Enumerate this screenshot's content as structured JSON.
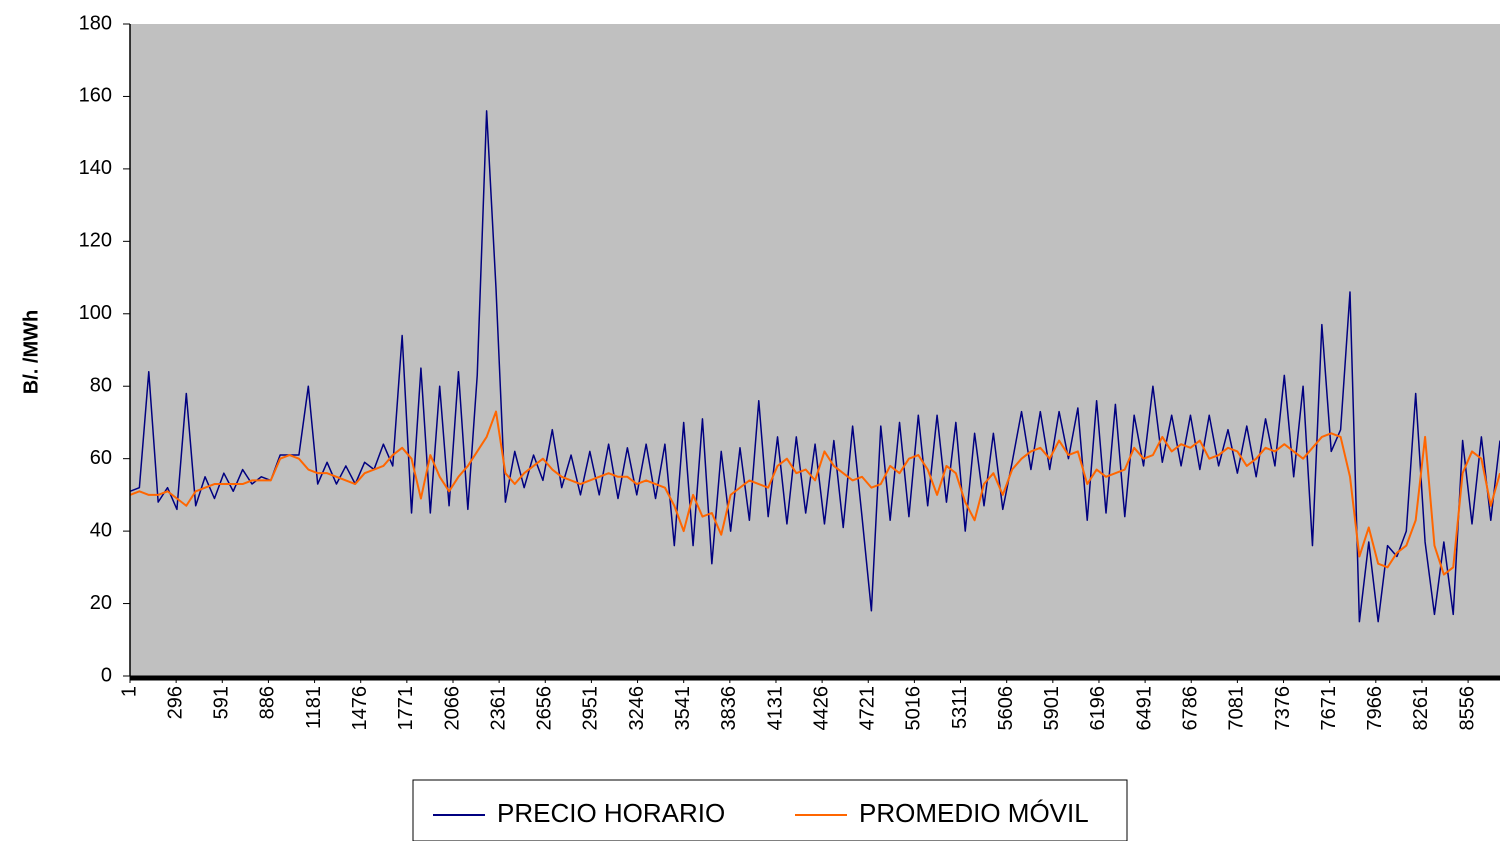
{
  "chart_data": {
    "type": "line",
    "y_label": "B/.  /MWh",
    "x": [
      1,
      61,
      121,
      181,
      241,
      301,
      361,
      421,
      481,
      541,
      601,
      661,
      721,
      781,
      841,
      901,
      961,
      1021,
      1081,
      1141,
      1201,
      1261,
      1321,
      1381,
      1441,
      1501,
      1561,
      1621,
      1681,
      1741,
      1801,
      1861,
      1921,
      1981,
      2041,
      2101,
      2161,
      2221,
      2281,
      2341,
      2401,
      2461,
      2521,
      2581,
      2641,
      2701,
      2761,
      2821,
      2881,
      2941,
      3001,
      3061,
      3121,
      3181,
      3241,
      3301,
      3361,
      3421,
      3481,
      3541,
      3601,
      3661,
      3721,
      3781,
      3841,
      3901,
      3961,
      4021,
      4081,
      4141,
      4201,
      4261,
      4321,
      4381,
      4441,
      4501,
      4561,
      4621,
      4681,
      4741,
      4801,
      4861,
      4921,
      4981,
      5041,
      5101,
      5161,
      5221,
      5281,
      5341,
      5401,
      5461,
      5521,
      5581,
      5641,
      5701,
      5761,
      5821,
      5881,
      5941,
      6001,
      6061,
      6121,
      6181,
      6241,
      6301,
      6361,
      6421,
      6481,
      6541,
      6601,
      6661,
      6721,
      6781,
      6841,
      6901,
      6961,
      7021,
      7081,
      7141,
      7201,
      7261,
      7321,
      7381,
      7441,
      7501,
      7561,
      7621,
      7681,
      7741,
      7801,
      7861,
      7921,
      7981,
      8041,
      8101,
      8161,
      8221,
      8281,
      8341,
      8401,
      8461,
      8521,
      8581,
      8641,
      8701,
      8760
    ],
    "series": [
      {
        "name": "PRECIO HORARIO",
        "color": "#000080",
        "values": [
          51,
          52,
          84,
          48,
          52,
          46,
          78,
          47,
          55,
          49,
          56,
          51,
          57,
          53,
          55,
          54,
          61,
          61,
          61,
          80,
          53,
          59,
          53,
          58,
          53,
          59,
          57,
          64,
          58,
          94,
          45,
          85,
          45,
          80,
          47,
          84,
          46,
          83,
          156,
          107,
          48,
          62,
          52,
          61,
          54,
          68,
          52,
          61,
          50,
          62,
          50,
          64,
          49,
          63,
          50,
          64,
          49,
          64,
          36,
          70,
          36,
          71,
          31,
          62,
          40,
          63,
          43,
          76,
          44,
          66,
          42,
          66,
          45,
          64,
          42,
          65,
          41,
          69,
          44,
          18,
          69,
          43,
          70,
          44,
          72,
          47,
          72,
          48,
          70,
          40,
          67,
          47,
          67,
          46,
          59,
          73,
          57,
          73,
          57,
          73,
          60,
          74,
          43,
          76,
          45,
          75,
          44,
          72,
          58,
          80,
          59,
          72,
          58,
          72,
          57,
          72,
          58,
          68,
          56,
          69,
          55,
          71,
          58,
          83,
          55,
          80,
          36,
          97,
          62,
          68,
          106,
          15,
          37,
          15,
          36,
          33,
          40,
          78,
          37,
          17,
          37,
          17,
          65,
          42,
          66,
          43,
          65
        ]
      },
      {
        "name": "PROMEDIO MÓVIL",
        "color": "#ff6600",
        "values": [
          50,
          51,
          50,
          50,
          51,
          49,
          47,
          51,
          52,
          53,
          53,
          53,
          53,
          54,
          54,
          54,
          60,
          61,
          60,
          57,
          56,
          56,
          55,
          54,
          53,
          56,
          57,
          58,
          61,
          63,
          60,
          49,
          61,
          55,
          51,
          55,
          58,
          62,
          66,
          73,
          56,
          53,
          56,
          58,
          60,
          57,
          55,
          54,
          53,
          54,
          55,
          56,
          55,
          55,
          53,
          54,
          53,
          52,
          47,
          40,
          50,
          44,
          45,
          39,
          50,
          52,
          54,
          53,
          52,
          58,
          60,
          56,
          57,
          54,
          62,
          58,
          56,
          54,
          55,
          52,
          53,
          58,
          56,
          60,
          61,
          57,
          50,
          58,
          56,
          48,
          43,
          53,
          56,
          50,
          57,
          60,
          62,
          63,
          60,
          65,
          61,
          62,
          53,
          57,
          55,
          56,
          57,
          63,
          60,
          61,
          66,
          62,
          64,
          63,
          65,
          60,
          61,
          63,
          62,
          58,
          60,
          63,
          62,
          64,
          62,
          60,
          63,
          66,
          67,
          66,
          55,
          33,
          41,
          31,
          30,
          34,
          36,
          43,
          66,
          36,
          28,
          30,
          56,
          62,
          60,
          47,
          56
        ]
      }
    ],
    "xlim": [
      1,
      8760
    ],
    "xticks": [
      1,
      296,
      591,
      886,
      1181,
      1476,
      1771,
      2066,
      2361,
      2656,
      2951,
      3246,
      3541,
      3836,
      4131,
      4426,
      4721,
      5016,
      5311,
      5606,
      5901,
      6196,
      6491,
      6786,
      7081,
      7376,
      7671,
      7966,
      8261,
      8556
    ],
    "ylim": [
      0,
      180
    ],
    "yticks": [
      0,
      20,
      40,
      60,
      80,
      100,
      120,
      140,
      160,
      180
    ],
    "grid": false,
    "legend": "bottom",
    "plot_background": "#c0c0c0"
  }
}
